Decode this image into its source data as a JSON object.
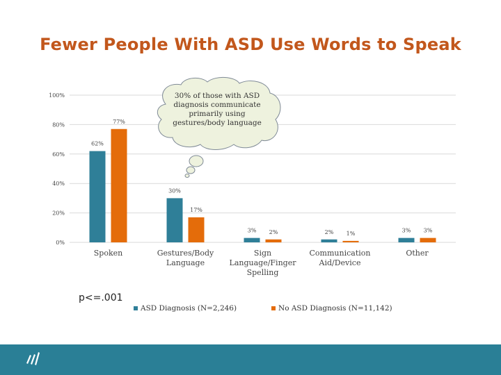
{
  "slide": {
    "title": "Fewer People With ASD Use Words to Speak",
    "callout": "30% of those with ASD diagnosis communicate primarily using gestures/body language",
    "p_value": "p<=.001"
  },
  "colors": {
    "asd": "#2f7f98",
    "no_asd": "#e46c0a",
    "title": "#c2571c",
    "footer": "#2a7f96"
  },
  "icons": {
    "footer_logo": "company-logo-icon"
  },
  "chart_data": {
    "type": "bar",
    "categories": [
      "Spoken",
      "Gestures/Body Language",
      "Sign Language/Finger Spelling",
      "Communication Aid/Device",
      "Other"
    ],
    "category_lines": [
      [
        "Spoken"
      ],
      [
        "Gestures/Body",
        "Language"
      ],
      [
        "Sign",
        "Language/Finger",
        "Spelling"
      ],
      [
        "Communication",
        "Aid/Device"
      ],
      [
        "Other"
      ]
    ],
    "series": [
      {
        "name": "ASD Diagnosis (N=2,246)",
        "values": [
          62,
          30,
          3,
          2,
          3
        ],
        "labels": [
          "62%",
          "30%",
          "3%",
          "2%",
          "3%"
        ]
      },
      {
        "name": "No ASD Diagnosis (N=11,142)",
        "values": [
          77,
          17,
          2,
          1,
          3
        ],
        "labels": [
          "77%",
          "17%",
          "2%",
          "1%",
          "3%"
        ]
      }
    ],
    "y_ticks": [
      0,
      20,
      40,
      60,
      80,
      100
    ],
    "y_tick_labels": [
      "0%",
      "20%",
      "40%",
      "60%",
      "80%",
      "100%"
    ],
    "ylim": [
      0,
      100
    ],
    "grid": true,
    "legend_position": "bottom"
  }
}
